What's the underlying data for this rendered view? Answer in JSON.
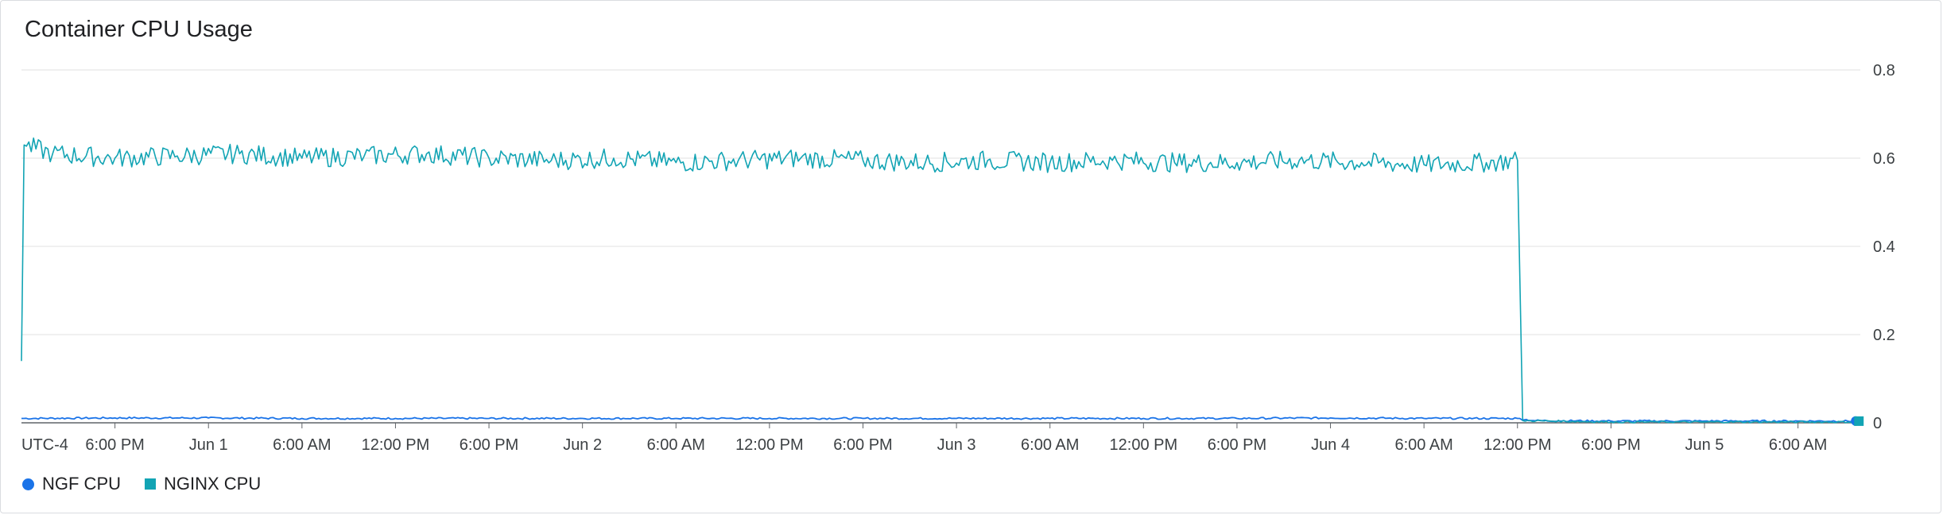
{
  "title": "Container CPU Usage",
  "colors": {
    "ngf": "#1a73e8",
    "nginx": "#12a4b4",
    "grid": "#e0e0e0",
    "axis": "#5f6368"
  },
  "chart_data": {
    "type": "line",
    "title": "Container CPU Usage",
    "xlabel": "",
    "ylabel": "",
    "timezone_label": "UTC-4",
    "x_range": [
      "May 31 12:00 PM",
      "Jun 5 10:00 AM"
    ],
    "x_ticks": [
      "6:00 PM",
      "Jun 1",
      "6:00 AM",
      "12:00 PM",
      "6:00 PM",
      "Jun 2",
      "6:00 AM",
      "12:00 PM",
      "6:00 PM",
      "Jun 3",
      "6:00 AM",
      "12:00 PM",
      "6:00 PM",
      "Jun 4",
      "6:00 AM",
      "12:00 PM",
      "6:00 PM",
      "Jun 5",
      "6:00 AM"
    ],
    "y_ticks": [
      "0",
      "0.2",
      "0.4",
      "0.6",
      "0.8"
    ],
    "ylim": [
      0,
      0.8
    ],
    "y_axis_side": "right",
    "grid": true,
    "legend_position": "bottom-left",
    "series": [
      {
        "name": "NGF CPU",
        "color": "#1a73e8",
        "marker": "circle",
        "points": [
          [
            "May 31 12:00 PM",
            0.01
          ],
          [
            "May 31 6:00 PM",
            0.011
          ],
          [
            "Jun 1 12:00 AM",
            0.011
          ],
          [
            "Jun 1 6:00 AM",
            0.01
          ],
          [
            "Jun 1 12:00 PM",
            0.01
          ],
          [
            "Jun 1 6:00 PM",
            0.01
          ],
          [
            "Jun 2 12:00 AM",
            0.01
          ],
          [
            "Jun 2 6:00 AM",
            0.01
          ],
          [
            "Jun 2 12:00 PM",
            0.01
          ],
          [
            "Jun 2 6:00 PM",
            0.01
          ],
          [
            "Jun 3 12:00 AM",
            0.01
          ],
          [
            "Jun 3 6:00 AM",
            0.01
          ],
          [
            "Jun 3 12:00 PM",
            0.01
          ],
          [
            "Jun 3 6:00 PM",
            0.01
          ],
          [
            "Jun 4 12:00 AM",
            0.011
          ],
          [
            "Jun 4 6:00 AM",
            0.01
          ],
          [
            "Jun 4 12:00 PM",
            0.01
          ],
          [
            "Jun 4 1:00 PM",
            0.005
          ],
          [
            "Jun 4 6:00 PM",
            0.004
          ],
          [
            "Jun 5 12:00 AM",
            0.004
          ],
          [
            "Jun 5 6:00 AM",
            0.004
          ],
          [
            "Jun 5 9:30 AM",
            0.004
          ]
        ]
      },
      {
        "name": "NGINX CPU",
        "color": "#12a4b4",
        "marker": "square",
        "points": [
          [
            "May 31 12:00 PM",
            0.14
          ],
          [
            "May 31 12:10 PM",
            0.63
          ],
          [
            "May 31 2:00 PM",
            0.61
          ],
          [
            "May 31 6:00 PM",
            0.6
          ],
          [
            "May 31 10:00 PM",
            0.605
          ],
          [
            "Jun 1 2:00 AM",
            0.61
          ],
          [
            "Jun 1 6:00 AM",
            0.6
          ],
          [
            "Jun 1 10:00 AM",
            0.605
          ],
          [
            "Jun 1 2:00 PM",
            0.61
          ],
          [
            "Jun 1 6:00 PM",
            0.6
          ],
          [
            "Jun 1 10:00 PM",
            0.595
          ],
          [
            "Jun 2 2:00 AM",
            0.6
          ],
          [
            "Jun 2 6:00 AM",
            0.59
          ],
          [
            "Jun 2 10:00 AM",
            0.595
          ],
          [
            "Jun 2 2:00 PM",
            0.6
          ],
          [
            "Jun 2 6:00 PM",
            0.595
          ],
          [
            "Jun 2 10:00 PM",
            0.59
          ],
          [
            "Jun 3 2:00 AM",
            0.595
          ],
          [
            "Jun 3 6:00 AM",
            0.59
          ],
          [
            "Jun 3 10:00 AM",
            0.595
          ],
          [
            "Jun 3 2:00 PM",
            0.59
          ],
          [
            "Jun 3 6:00 PM",
            0.59
          ],
          [
            "Jun 3 10:00 PM",
            0.595
          ],
          [
            "Jun 4 2:00 AM",
            0.59
          ],
          [
            "Jun 4 6:00 AM",
            0.585
          ],
          [
            "Jun 4 10:00 AM",
            0.59
          ],
          [
            "Jun 4 12:00 PM",
            0.595
          ],
          [
            "Jun 4 12:20 PM",
            0.005
          ],
          [
            "Jun 4 6:00 PM",
            0.002
          ],
          [
            "Jun 5 12:00 AM",
            0.002
          ],
          [
            "Jun 5 6:00 AM",
            0.002
          ],
          [
            "Jun 5 9:30 AM",
            0.002
          ]
        ]
      }
    ]
  }
}
